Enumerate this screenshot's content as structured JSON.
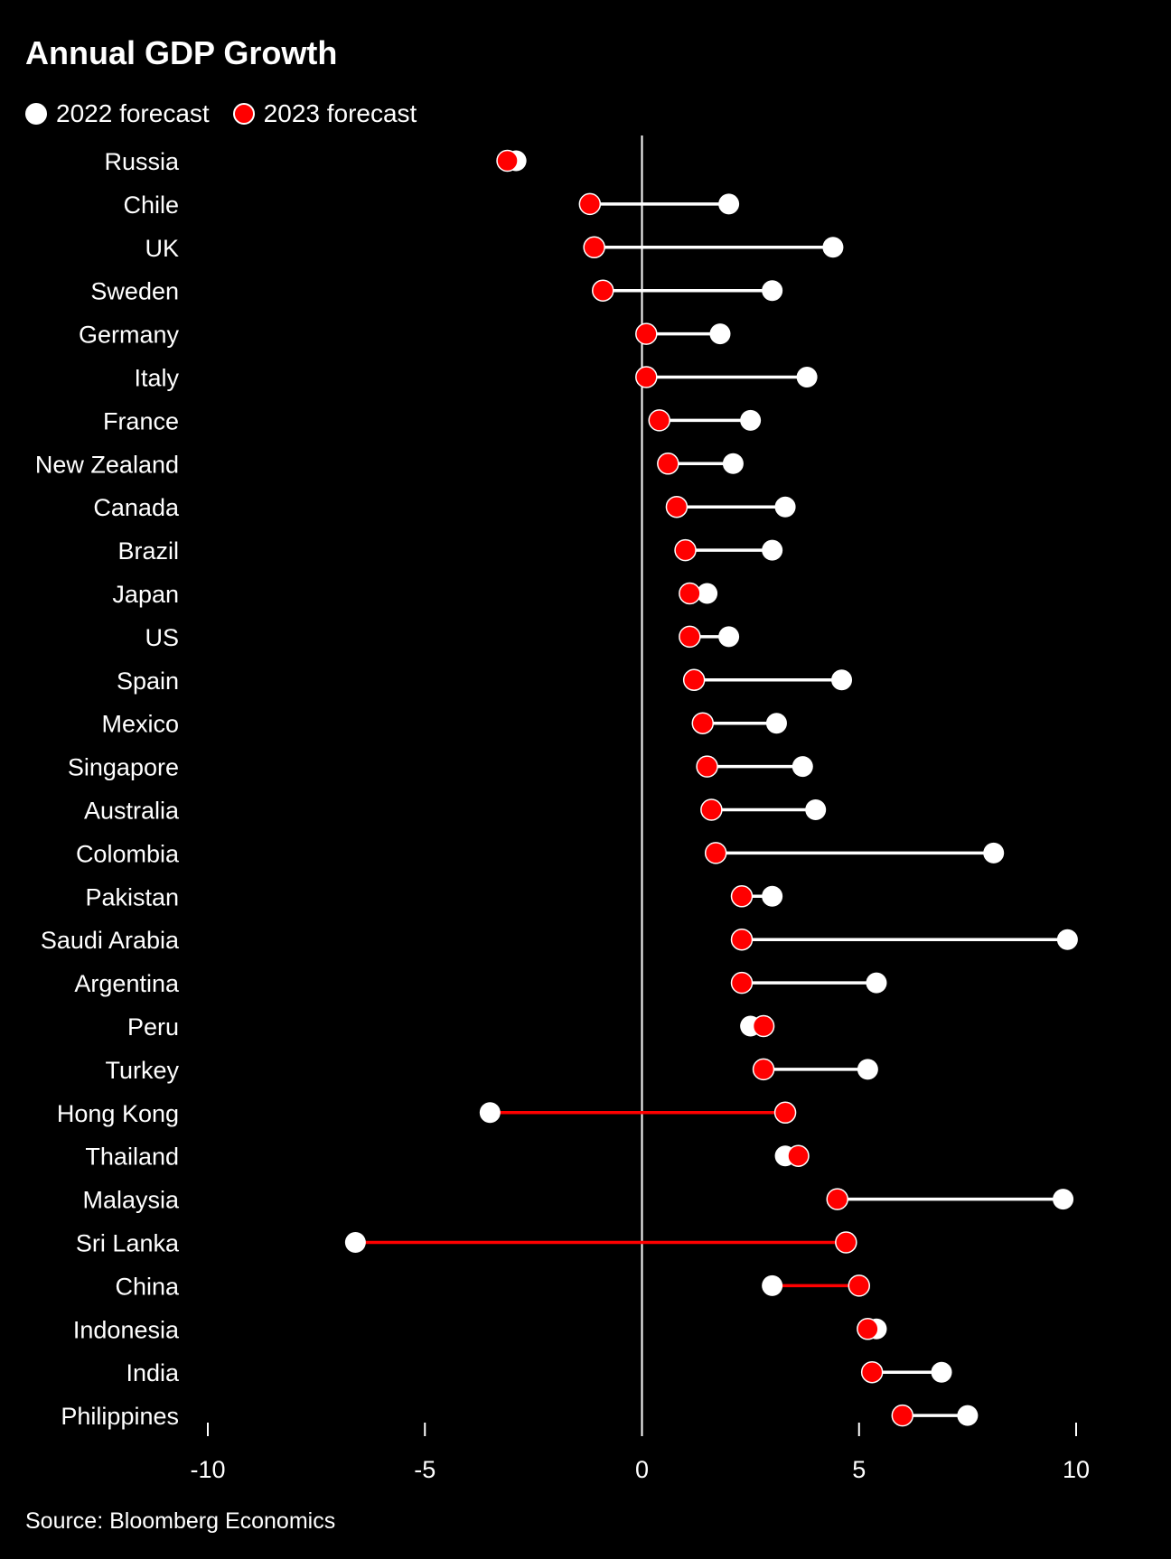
{
  "chart_data": {
    "type": "dot-plot",
    "title": "Annual GDP Growth",
    "legend": {
      "placement": "top-left"
    },
    "series": [
      {
        "name": "2022 forecast",
        "color": "#ffffff"
      },
      {
        "name": "2023 forecast",
        "color": "#ff0000"
      }
    ],
    "categories": [
      "Russia",
      "Chile",
      "UK",
      "Sweden",
      "Germany",
      "Italy",
      "France",
      "New Zealand",
      "Canada",
      "Brazil",
      "Japan",
      "US",
      "Spain",
      "Mexico",
      "Singapore",
      "Australia",
      "Colombia",
      "Pakistan",
      "Saudi Arabia",
      "Argentina",
      "Peru",
      "Turkey",
      "Hong Kong",
      "Thailand",
      "Malaysia",
      "Sri Lanka",
      "China",
      "Indonesia",
      "India",
      "Philippines"
    ],
    "values_2022": [
      -2.9,
      2.0,
      4.4,
      3.0,
      1.8,
      3.8,
      2.5,
      2.1,
      3.3,
      3.0,
      1.5,
      2.0,
      4.6,
      3.1,
      3.7,
      4.0,
      8.1,
      3.0,
      9.8,
      5.4,
      2.5,
      5.2,
      -3.5,
      3.3,
      9.7,
      -6.6,
      3.0,
      5.4,
      6.9,
      7.5
    ],
    "values_2023": [
      -3.1,
      -1.2,
      -1.1,
      -0.9,
      0.1,
      0.1,
      0.4,
      0.6,
      0.8,
      1.0,
      1.1,
      1.1,
      1.2,
      1.4,
      1.5,
      1.6,
      1.7,
      2.3,
      2.3,
      2.3,
      2.8,
      2.8,
      3.3,
      3.6,
      4.5,
      4.7,
      5.0,
      5.2,
      5.3,
      6.0
    ],
    "xlim": [
      -10,
      10
    ],
    "xticks": [
      -10,
      -5,
      0,
      5,
      10
    ],
    "xticklabels": [
      "-10",
      "-5",
      "0",
      "5",
      "10"
    ],
    "reference_line": 0,
    "source": "Source: Bloomberg Economics"
  },
  "colors": {
    "background": "#000000",
    "white": "#ffffff",
    "red": "#ff0000"
  }
}
